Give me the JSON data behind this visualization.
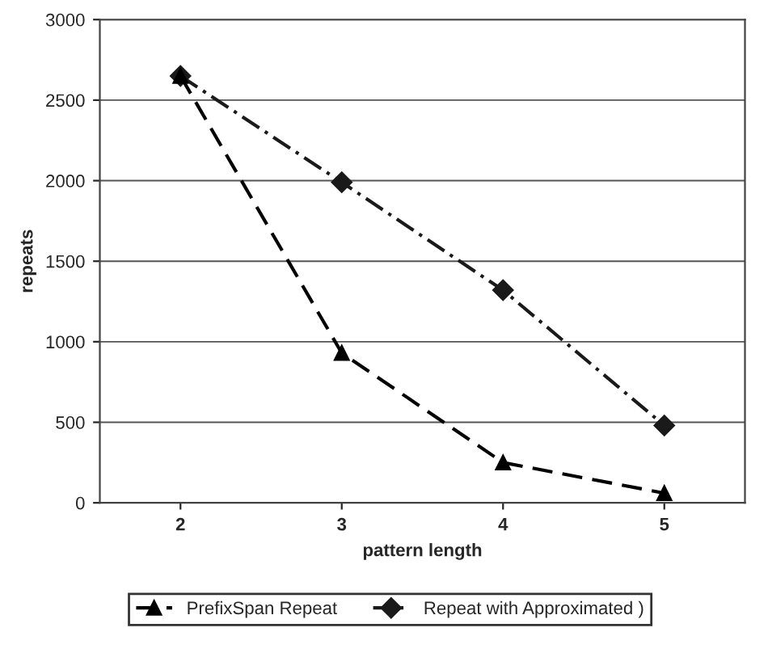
{
  "chart_data": {
    "type": "line",
    "xlabel": "pattern length",
    "ylabel": "repeats",
    "categories": [
      "2",
      "3",
      "4",
      "5"
    ],
    "series": [
      {
        "name": "PrefixSpan Repeat",
        "color": "#000000",
        "values": [
          2650,
          930,
          250,
          60
        ],
        "marker": "triangle",
        "line_style": "dashed"
      },
      {
        "name": "Repeat with Approximated )",
        "color": "#1a1a1a",
        "values": [
          2650,
          1990,
          1320,
          480
        ],
        "marker": "diamond",
        "line_style": "dashdot"
      }
    ],
    "ylim": [
      0,
      3000
    ],
    "yticks": [
      0,
      500,
      1000,
      1500,
      2000,
      2500,
      3000
    ],
    "grid": "y",
    "legend": "bottom"
  }
}
